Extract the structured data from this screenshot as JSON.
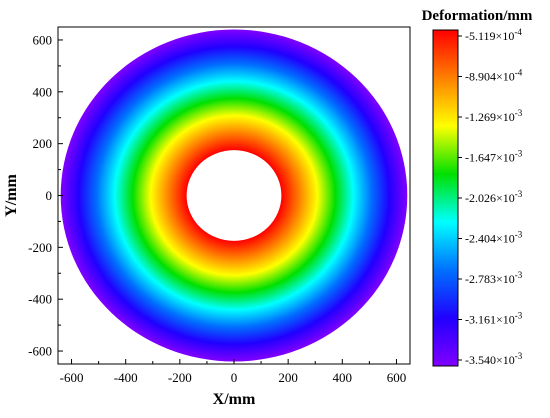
{
  "chart_data": {
    "type": "heatmap",
    "xlabel": "X/mm",
    "ylabel": "Y/mm",
    "xlim": [
      -650,
      650
    ],
    "ylim": [
      -650,
      650
    ],
    "x_ticks": [
      "-600",
      "-400",
      "-200",
      "0",
      "200",
      "400",
      "600"
    ],
    "y_ticks": [
      "600",
      "400",
      "200",
      "0",
      "-200",
      "-400",
      "-600"
    ],
    "x_tick_values": [
      -600,
      -400,
      -200,
      0,
      200,
      400,
      600
    ],
    "y_tick_values": [
      600,
      400,
      200,
      0,
      -200,
      -400,
      -600
    ],
    "annulus": {
      "inner_radius_mm": 175,
      "outer_radius_mm": 640
    },
    "colorbar": {
      "title": "Deformation/mm",
      "labels": [
        {
          "mantissa": "-5.119",
          "exp": "-4"
        },
        {
          "mantissa": "-8.904",
          "exp": "-4"
        },
        {
          "mantissa": "-1.269",
          "exp": "-3"
        },
        {
          "mantissa": "-1.647",
          "exp": "-3"
        },
        {
          "mantissa": "-2.026",
          "exp": "-3"
        },
        {
          "mantissa": "-2.404",
          "exp": "-3"
        },
        {
          "mantissa": "-2.783",
          "exp": "-3"
        },
        {
          "mantissa": "-3.161",
          "exp": "-3"
        },
        {
          "mantissa": "-3.540",
          "exp": "-3"
        }
      ],
      "colors": [
        "#ff0000",
        "#ff8000",
        "#ffff00",
        "#00e000",
        "#00ffff",
        "#0070ff",
        "#2000ff",
        "#8000ff"
      ]
    }
  }
}
